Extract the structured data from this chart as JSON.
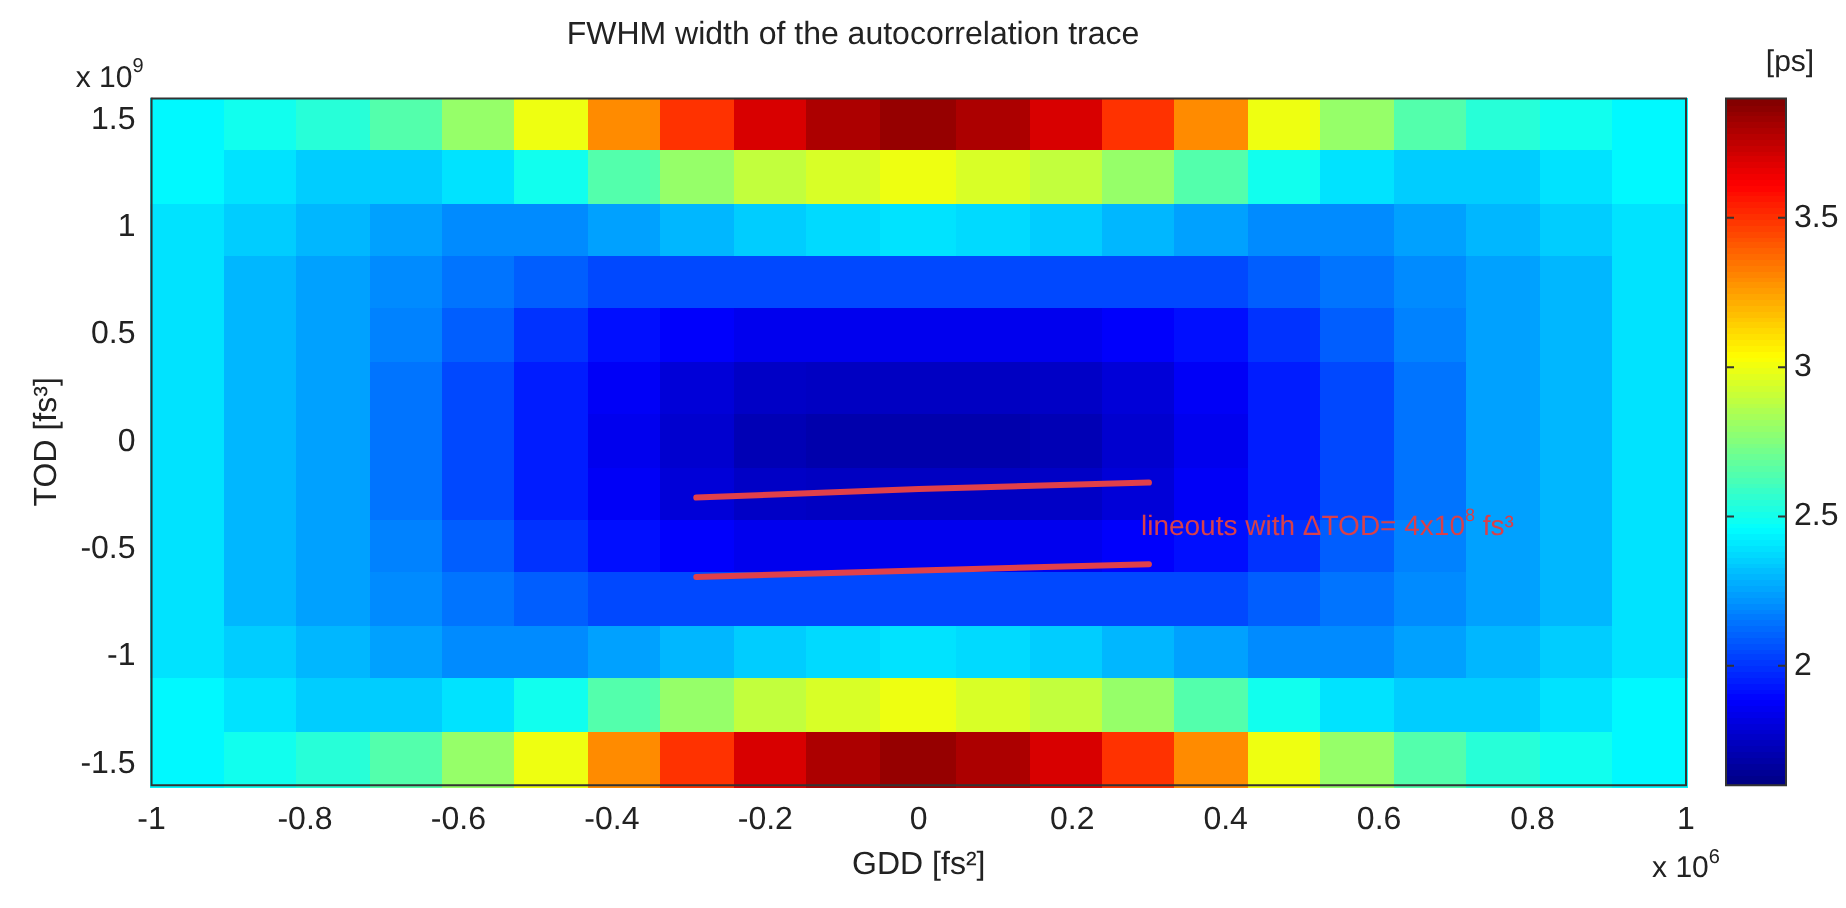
{
  "chart_data": {
    "type": "heatmap",
    "title": "FWHM width of the autocorrelation trace",
    "xlabel": "GDD [fs²]",
    "ylabel": "TOD [fs³]",
    "clabel": "[ps]",
    "annotations": [
      "x 10$^{9}$",
      "x 10$^{6}$",
      "lineouts with ΔTOD= 4x10$^{8}$ fs³"
    ],
    "xlim": [
      -1,
      1
    ],
    "xticks": [
      -1,
      -0.8,
      -0.6,
      -0.4,
      -0.2,
      0,
      0.2,
      0.4,
      0.6,
      0.8,
      1
    ],
    "ylim": [
      -1.6,
      1.6
    ],
    "yticks": [
      -1.5,
      -1,
      -0.5,
      0,
      0.5,
      1,
      1.5
    ],
    "clim": [
      1.6,
      3.9
    ],
    "cticks": [
      2,
      2.5,
      3,
      3.5
    ],
    "x": [
      -0.95,
      -0.86,
      -0.76,
      -0.67,
      -0.57,
      -0.48,
      -0.38,
      -0.29,
      -0.19,
      -0.1,
      0,
      0.1,
      0.19,
      0.29,
      0.38,
      0.48,
      0.57,
      0.67,
      0.76,
      0.86,
      0.95
    ],
    "y": [
      1.48,
      1.23,
      0.98,
      0.74,
      0.49,
      0.25,
      0,
      -0.25,
      -0.49,
      -0.74,
      -0.98,
      -1.23,
      -1.48
    ],
    "cells": [
      [
        2.45,
        2.5,
        2.55,
        2.65,
        2.8,
        3.0,
        3.3,
        3.5,
        3.7,
        3.8,
        3.85,
        3.8,
        3.7,
        3.5,
        3.3,
        3.0,
        2.8,
        2.65,
        2.55,
        2.5,
        2.45
      ],
      [
        2.45,
        2.4,
        2.35,
        2.35,
        2.4,
        2.5,
        2.65,
        2.8,
        2.9,
        2.95,
        3.0,
        2.95,
        2.9,
        2.8,
        2.65,
        2.5,
        2.4,
        2.35,
        2.35,
        2.4,
        2.45
      ],
      [
        2.4,
        2.35,
        2.3,
        2.25,
        2.2,
        2.2,
        2.25,
        2.3,
        2.35,
        2.38,
        2.4,
        2.38,
        2.35,
        2.3,
        2.25,
        2.2,
        2.2,
        2.25,
        2.3,
        2.35,
        2.4
      ],
      [
        2.4,
        2.3,
        2.25,
        2.2,
        2.15,
        2.1,
        2.05,
        2.05,
        2.05,
        2.05,
        2.05,
        2.05,
        2.05,
        2.05,
        2.05,
        2.1,
        2.15,
        2.2,
        2.25,
        2.3,
        2.4
      ],
      [
        2.4,
        2.3,
        2.25,
        2.18,
        2.1,
        2.0,
        1.92,
        1.88,
        1.85,
        1.85,
        1.85,
        1.85,
        1.85,
        1.88,
        1.92,
        2.0,
        2.1,
        2.18,
        2.25,
        2.3,
        2.4
      ],
      [
        2.4,
        2.3,
        2.25,
        2.15,
        2.05,
        1.95,
        1.87,
        1.8,
        1.76,
        1.75,
        1.75,
        1.75,
        1.76,
        1.8,
        1.87,
        1.95,
        2.05,
        2.15,
        2.25,
        2.3,
        2.4
      ],
      [
        2.4,
        2.3,
        2.25,
        2.15,
        2.05,
        1.95,
        1.85,
        1.78,
        1.72,
        1.7,
        1.7,
        1.7,
        1.72,
        1.78,
        1.85,
        1.95,
        2.05,
        2.15,
        2.25,
        2.3,
        2.4
      ],
      [
        2.4,
        2.3,
        2.25,
        2.15,
        2.05,
        1.95,
        1.87,
        1.8,
        1.76,
        1.75,
        1.75,
        1.75,
        1.76,
        1.8,
        1.87,
        1.95,
        2.05,
        2.15,
        2.25,
        2.3,
        2.4
      ],
      [
        2.4,
        2.3,
        2.25,
        2.18,
        2.1,
        2.0,
        1.92,
        1.88,
        1.85,
        1.85,
        1.85,
        1.85,
        1.85,
        1.88,
        1.92,
        2.0,
        2.1,
        2.18,
        2.25,
        2.3,
        2.4
      ],
      [
        2.4,
        2.3,
        2.25,
        2.2,
        2.15,
        2.1,
        2.05,
        2.05,
        2.05,
        2.05,
        2.05,
        2.05,
        2.05,
        2.05,
        2.05,
        2.1,
        2.15,
        2.2,
        2.25,
        2.3,
        2.4
      ],
      [
        2.4,
        2.35,
        2.3,
        2.25,
        2.2,
        2.2,
        2.25,
        2.3,
        2.35,
        2.38,
        2.4,
        2.38,
        2.35,
        2.3,
        2.25,
        2.2,
        2.2,
        2.25,
        2.3,
        2.35,
        2.4
      ],
      [
        2.45,
        2.4,
        2.35,
        2.35,
        2.4,
        2.5,
        2.65,
        2.8,
        2.9,
        2.95,
        3.0,
        2.95,
        2.9,
        2.8,
        2.65,
        2.5,
        2.4,
        2.35,
        2.35,
        2.4,
        2.45
      ],
      [
        2.45,
        2.5,
        2.55,
        2.65,
        2.8,
        3.0,
        3.3,
        3.5,
        3.7,
        3.8,
        3.85,
        3.8,
        3.7,
        3.5,
        3.3,
        3.0,
        2.8,
        2.65,
        2.55,
        2.5,
        2.45
      ]
    ],
    "series": [
      {
        "type": "line",
        "color": "#e0404a",
        "x": [
          -0.29,
          0,
          0.3
        ],
        "values": [
          -0.26,
          -0.22,
          -0.19
        ]
      },
      {
        "type": "line",
        "color": "#e0404a",
        "x": [
          -0.29,
          0,
          0.3
        ],
        "values": [
          -0.63,
          -0.6,
          -0.57
        ]
      }
    ]
  }
}
